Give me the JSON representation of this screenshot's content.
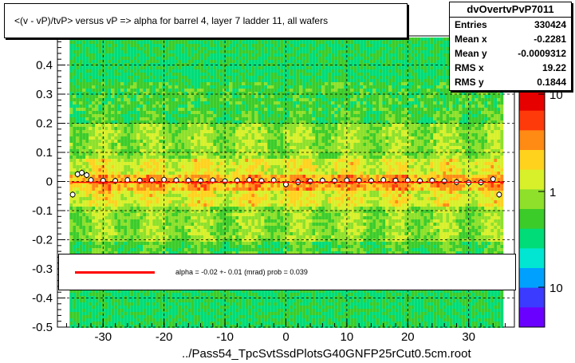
{
  "chart_data": {
    "type": "heatmap",
    "title": "<(v - vP)/tvP> versus   vP => alpha for barrel 4, layer 7 ladder 11, all wafers",
    "xlabel": "../Pass54_TpcSvtSsdPlotsG40GNFP25rCut0.5cm.root",
    "ylabel": "",
    "xlim": [
      -37.5,
      37.5
    ],
    "ylim": [
      -0.5,
      0.5
    ],
    "x_ticks": [
      "-30",
      "-20",
      "-10",
      "0",
      "10",
      "20",
      "30"
    ],
    "x_tick_values": [
      -30,
      -20,
      -10,
      0,
      10,
      20,
      30
    ],
    "y_ticks": [
      "-0.5",
      "-0.4",
      "-0.3",
      "-0.2",
      "-0.1",
      "0",
      "0.1",
      "0.2",
      "0.3",
      "0.4"
    ],
    "y_tick_values": [
      -0.5,
      -0.4,
      -0.3,
      -0.2,
      -0.1,
      0,
      0.1,
      0.2,
      0.3,
      0.4
    ],
    "z_scale": "log",
    "z_ticks": [
      "10",
      "1",
      "10"
    ],
    "z_tick_values": [
      10,
      1,
      0.1
    ],
    "grid": true,
    "profile_points": {
      "x": [
        -35,
        -34.2,
        -33.5,
        -32.7,
        -32,
        -30,
        -28,
        -26,
        -24,
        -22,
        -20,
        -18,
        -16,
        -14,
        -12,
        -10,
        -8,
        -6,
        -4,
        -2,
        0,
        2,
        4,
        6,
        8,
        10,
        12,
        14,
        16,
        18,
        20,
        22,
        24,
        26,
        28,
        30,
        32,
        34,
        35
      ],
      "y": [
        -0.045,
        0.025,
        0.03,
        0.022,
        0.005,
        0.003,
        0.002,
        0.005,
        0.003,
        0.004,
        0.006,
        0.004,
        0.003,
        0.002,
        0.004,
        0.001,
        0.003,
        0.005,
        0.002,
        0.004,
        -0.01,
        -0.002,
        0.001,
        0.003,
        0.002,
        0.004,
        0.003,
        0.002,
        0.005,
        0.003,
        0.004,
        0.002,
        0.003,
        0.001,
        -0.002,
        -0.004,
        -0.003,
        0.008,
        -0.045
      ]
    },
    "fit": {
      "alpha": -0.02,
      "error": 0.01,
      "prob": 0.039
    }
  },
  "stats": {
    "name": "dvOvertvPvP7011",
    "rows": [
      {
        "key": "Entries",
        "value": "330424"
      },
      {
        "key": "Mean x",
        "value": "-0.2281"
      },
      {
        "key": "Mean y",
        "value": "-0.0009312"
      },
      {
        "key": "RMS x",
        "value": "19.22"
      },
      {
        "key": "RMS y",
        "value": "0.1844"
      }
    ]
  },
  "fit_label": "alpha =    -0.02 +-  0.01 (mrad) prob = 0.039",
  "colors": {
    "fit_line": "#ff0000",
    "profile_marker": "#000000",
    "palette": [
      "#6a00ff",
      "#3b3bff",
      "#00a0ff",
      "#00e6d2",
      "#00dc78",
      "#3ccc2a",
      "#8ee02a",
      "#d8f02a",
      "#ffd21e",
      "#ff8a14",
      "#ff3a0a",
      "#e60000"
    ]
  }
}
